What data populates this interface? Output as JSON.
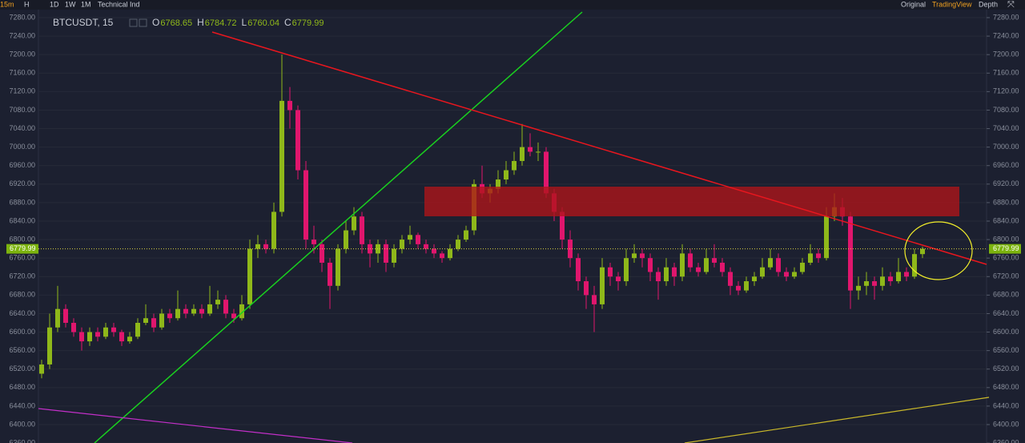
{
  "toolbar": {
    "interval": "15m",
    "chart_type": "H",
    "ranges": [
      "1D",
      "1W",
      "1M"
    ],
    "indicators": "Technical Ind",
    "views": [
      "Original",
      "TradingView",
      "Depth"
    ]
  },
  "chart_data": {
    "type": "candlestick",
    "title": "BTCUSDT, 15",
    "ohlc_labels": [
      "O",
      "H",
      "L",
      "C"
    ],
    "up_color": "#8fb81a",
    "down_color": "#e0166d",
    "grid": true,
    "ylim": [
      6360,
      7280
    ],
    "yticks": [
      {
        "value": 6360,
        "label": "6360.00"
      },
      {
        "value": 6400,
        "label": "6400.00"
      },
      {
        "value": 6440,
        "label": "6440.00"
      },
      {
        "value": 6480,
        "label": "6480.00"
      },
      {
        "value": 6520,
        "label": "6520.00"
      },
      {
        "value": 6560,
        "label": "6560.00"
      },
      {
        "value": 6600,
        "label": "6600.00"
      },
      {
        "value": 6640,
        "label": "6640.00"
      },
      {
        "value": 6680,
        "label": "6680.00"
      },
      {
        "value": 6720,
        "label": "6720.00"
      },
      {
        "value": 6760,
        "label": "6760.00"
      },
      {
        "value": 6800,
        "label": "6800.00"
      },
      {
        "value": 6840,
        "label": "6840.00"
      },
      {
        "value": 6880,
        "label": "6880.00"
      },
      {
        "value": 6920,
        "label": "6920.00"
      },
      {
        "value": 6960,
        "label": "6960.00"
      },
      {
        "value": 7000,
        "label": "7000.00"
      },
      {
        "value": 7040,
        "label": "7040.00"
      },
      {
        "value": 7080,
        "label": "7080.00"
      },
      {
        "value": 7120,
        "label": "7120.00"
      },
      {
        "value": 7160,
        "label": "7160.00"
      },
      {
        "value": 7200,
        "label": "7200.00"
      },
      {
        "value": 7240,
        "label": "7240.00"
      },
      {
        "value": 7280,
        "label": "7280.00"
      }
    ],
    "ohlc": [
      [
        6510,
        6540,
        6500,
        6530
      ],
      [
        6530,
        6640,
        6520,
        6610
      ],
      [
        6610,
        6700,
        6600,
        6650
      ],
      [
        6650,
        6660,
        6610,
        6620
      ],
      [
        6620,
        6630,
        6590,
        6600
      ],
      [
        6600,
        6610,
        6560,
        6580
      ],
      [
        6580,
        6610,
        6570,
        6600
      ],
      [
        6600,
        6610,
        6580,
        6590
      ],
      [
        6590,
        6620,
        6585,
        6610
      ],
      [
        6610,
        6620,
        6590,
        6600
      ],
      [
        6600,
        6605,
        6570,
        6580
      ],
      [
        6580,
        6600,
        6575,
        6590
      ],
      [
        6590,
        6630,
        6585,
        6620
      ],
      [
        6620,
        6660,
        6615,
        6630
      ],
      [
        6630,
        6640,
        6600,
        6610
      ],
      [
        6610,
        6650,
        6605,
        6640
      ],
      [
        6640,
        6650,
        6620,
        6630
      ],
      [
        6630,
        6690,
        6625,
        6650
      ],
      [
        6650,
        6660,
        6630,
        6640
      ],
      [
        6640,
        6660,
        6635,
        6650
      ],
      [
        6650,
        6660,
        6630,
        6640
      ],
      [
        6640,
        6700,
        6635,
        6660
      ],
      [
        6660,
        6690,
        6650,
        6670
      ],
      [
        6670,
        6680,
        6630,
        6640
      ],
      [
        6640,
        6650,
        6620,
        6630
      ],
      [
        6630,
        6680,
        6625,
        6660
      ],
      [
        6660,
        6800,
        6650,
        6780
      ],
      [
        6780,
        6810,
        6760,
        6790
      ],
      [
        6790,
        6800,
        6770,
        6780
      ],
      [
        6780,
        6880,
        6770,
        6860
      ],
      [
        6860,
        7200,
        6850,
        7100
      ],
      [
        7100,
        7130,
        7040,
        7080
      ],
      [
        7080,
        7090,
        6930,
        6950
      ],
      [
        6950,
        6970,
        6780,
        6800
      ],
      [
        6800,
        6830,
        6770,
        6790
      ],
      [
        6790,
        6800,
        6730,
        6750
      ],
      [
        6750,
        6760,
        6650,
        6700
      ],
      [
        6700,
        6790,
        6690,
        6780
      ],
      [
        6780,
        6840,
        6770,
        6820
      ],
      [
        6820,
        6870,
        6810,
        6850
      ],
      [
        6850,
        6860,
        6770,
        6790
      ],
      [
        6790,
        6800,
        6740,
        6770
      ],
      [
        6770,
        6800,
        6750,
        6790
      ],
      [
        6790,
        6800,
        6730,
        6750
      ],
      [
        6750,
        6790,
        6740,
        6780
      ],
      [
        6780,
        6810,
        6770,
        6800
      ],
      [
        6800,
        6830,
        6790,
        6810
      ],
      [
        6810,
        6815,
        6780,
        6790
      ],
      [
        6790,
        6800,
        6770,
        6780
      ],
      [
        6780,
        6790,
        6760,
        6770
      ],
      [
        6770,
        6775,
        6750,
        6760
      ],
      [
        6760,
        6790,
        6755,
        6780
      ],
      [
        6780,
        6810,
        6775,
        6800
      ],
      [
        6800,
        6830,
        6795,
        6820
      ],
      [
        6820,
        6930,
        6810,
        6920
      ],
      [
        6920,
        6960,
        6890,
        6900
      ],
      [
        6900,
        6920,
        6880,
        6910
      ],
      [
        6910,
        6950,
        6900,
        6930
      ],
      [
        6930,
        6970,
        6920,
        6950
      ],
      [
        6950,
        6990,
        6940,
        6970
      ],
      [
        6970,
        7050,
        6960,
        7000
      ],
      [
        7000,
        7030,
        6980,
        6990
      ],
      [
        6990,
        7010,
        6970,
        6990
      ],
      [
        6990,
        7000,
        6890,
        6900
      ],
      [
        6900,
        6910,
        6840,
        6860
      ],
      [
        6860,
        6870,
        6780,
        6800
      ],
      [
        6800,
        6820,
        6740,
        6760
      ],
      [
        6760,
        6770,
        6690,
        6710
      ],
      [
        6710,
        6720,
        6650,
        6680
      ],
      [
        6680,
        6700,
        6600,
        6660
      ],
      [
        6660,
        6760,
        6650,
        6740
      ],
      [
        6740,
        6750,
        6700,
        6720
      ],
      [
        6720,
        6730,
        6690,
        6710
      ],
      [
        6710,
        6780,
        6700,
        6760
      ],
      [
        6760,
        6790,
        6750,
        6770
      ],
      [
        6770,
        6780,
        6740,
        6760
      ],
      [
        6760,
        6770,
        6710,
        6730
      ],
      [
        6730,
        6740,
        6670,
        6710
      ],
      [
        6710,
        6760,
        6700,
        6740
      ],
      [
        6740,
        6750,
        6700,
        6720
      ],
      [
        6720,
        6790,
        6710,
        6770
      ],
      [
        6770,
        6780,
        6730,
        6740
      ],
      [
        6740,
        6750,
        6720,
        6730
      ],
      [
        6730,
        6780,
        6725,
        6760
      ],
      [
        6760,
        6790,
        6740,
        6750
      ],
      [
        6750,
        6760,
        6720,
        6730
      ],
      [
        6730,
        6740,
        6680,
        6700
      ],
      [
        6700,
        6710,
        6680,
        6690
      ],
      [
        6690,
        6720,
        6685,
        6710
      ],
      [
        6710,
        6730,
        6700,
        6720
      ],
      [
        6720,
        6760,
        6715,
        6740
      ],
      [
        6740,
        6780,
        6735,
        6760
      ],
      [
        6760,
        6770,
        6720,
        6730
      ],
      [
        6730,
        6740,
        6710,
        6720
      ],
      [
        6720,
        6740,
        6715,
        6730
      ],
      [
        6730,
        6760,
        6725,
        6750
      ],
      [
        6750,
        6790,
        6745,
        6770
      ],
      [
        6770,
        6780,
        6750,
        6760
      ],
      [
        6760,
        6870,
        6755,
        6850
      ],
      [
        6850,
        6900,
        6840,
        6870
      ],
      [
        6870,
        6890,
        6830,
        6850
      ],
      [
        6850,
        6860,
        6650,
        6690
      ],
      [
        6690,
        6720,
        6670,
        6700
      ],
      [
        6700,
        6730,
        6680,
        6710
      ],
      [
        6710,
        6720,
        6670,
        6700
      ],
      [
        6700,
        6740,
        6690,
        6720
      ],
      [
        6720,
        6730,
        6700,
        6710
      ],
      [
        6710,
        6760,
        6705,
        6730
      ],
      [
        6730,
        6740,
        6710,
        6720
      ],
      [
        6720,
        6780,
        6715,
        6768.65
      ],
      [
        6768.65,
        6784.72,
        6760.04,
        6779.99
      ]
    ]
  }
}
